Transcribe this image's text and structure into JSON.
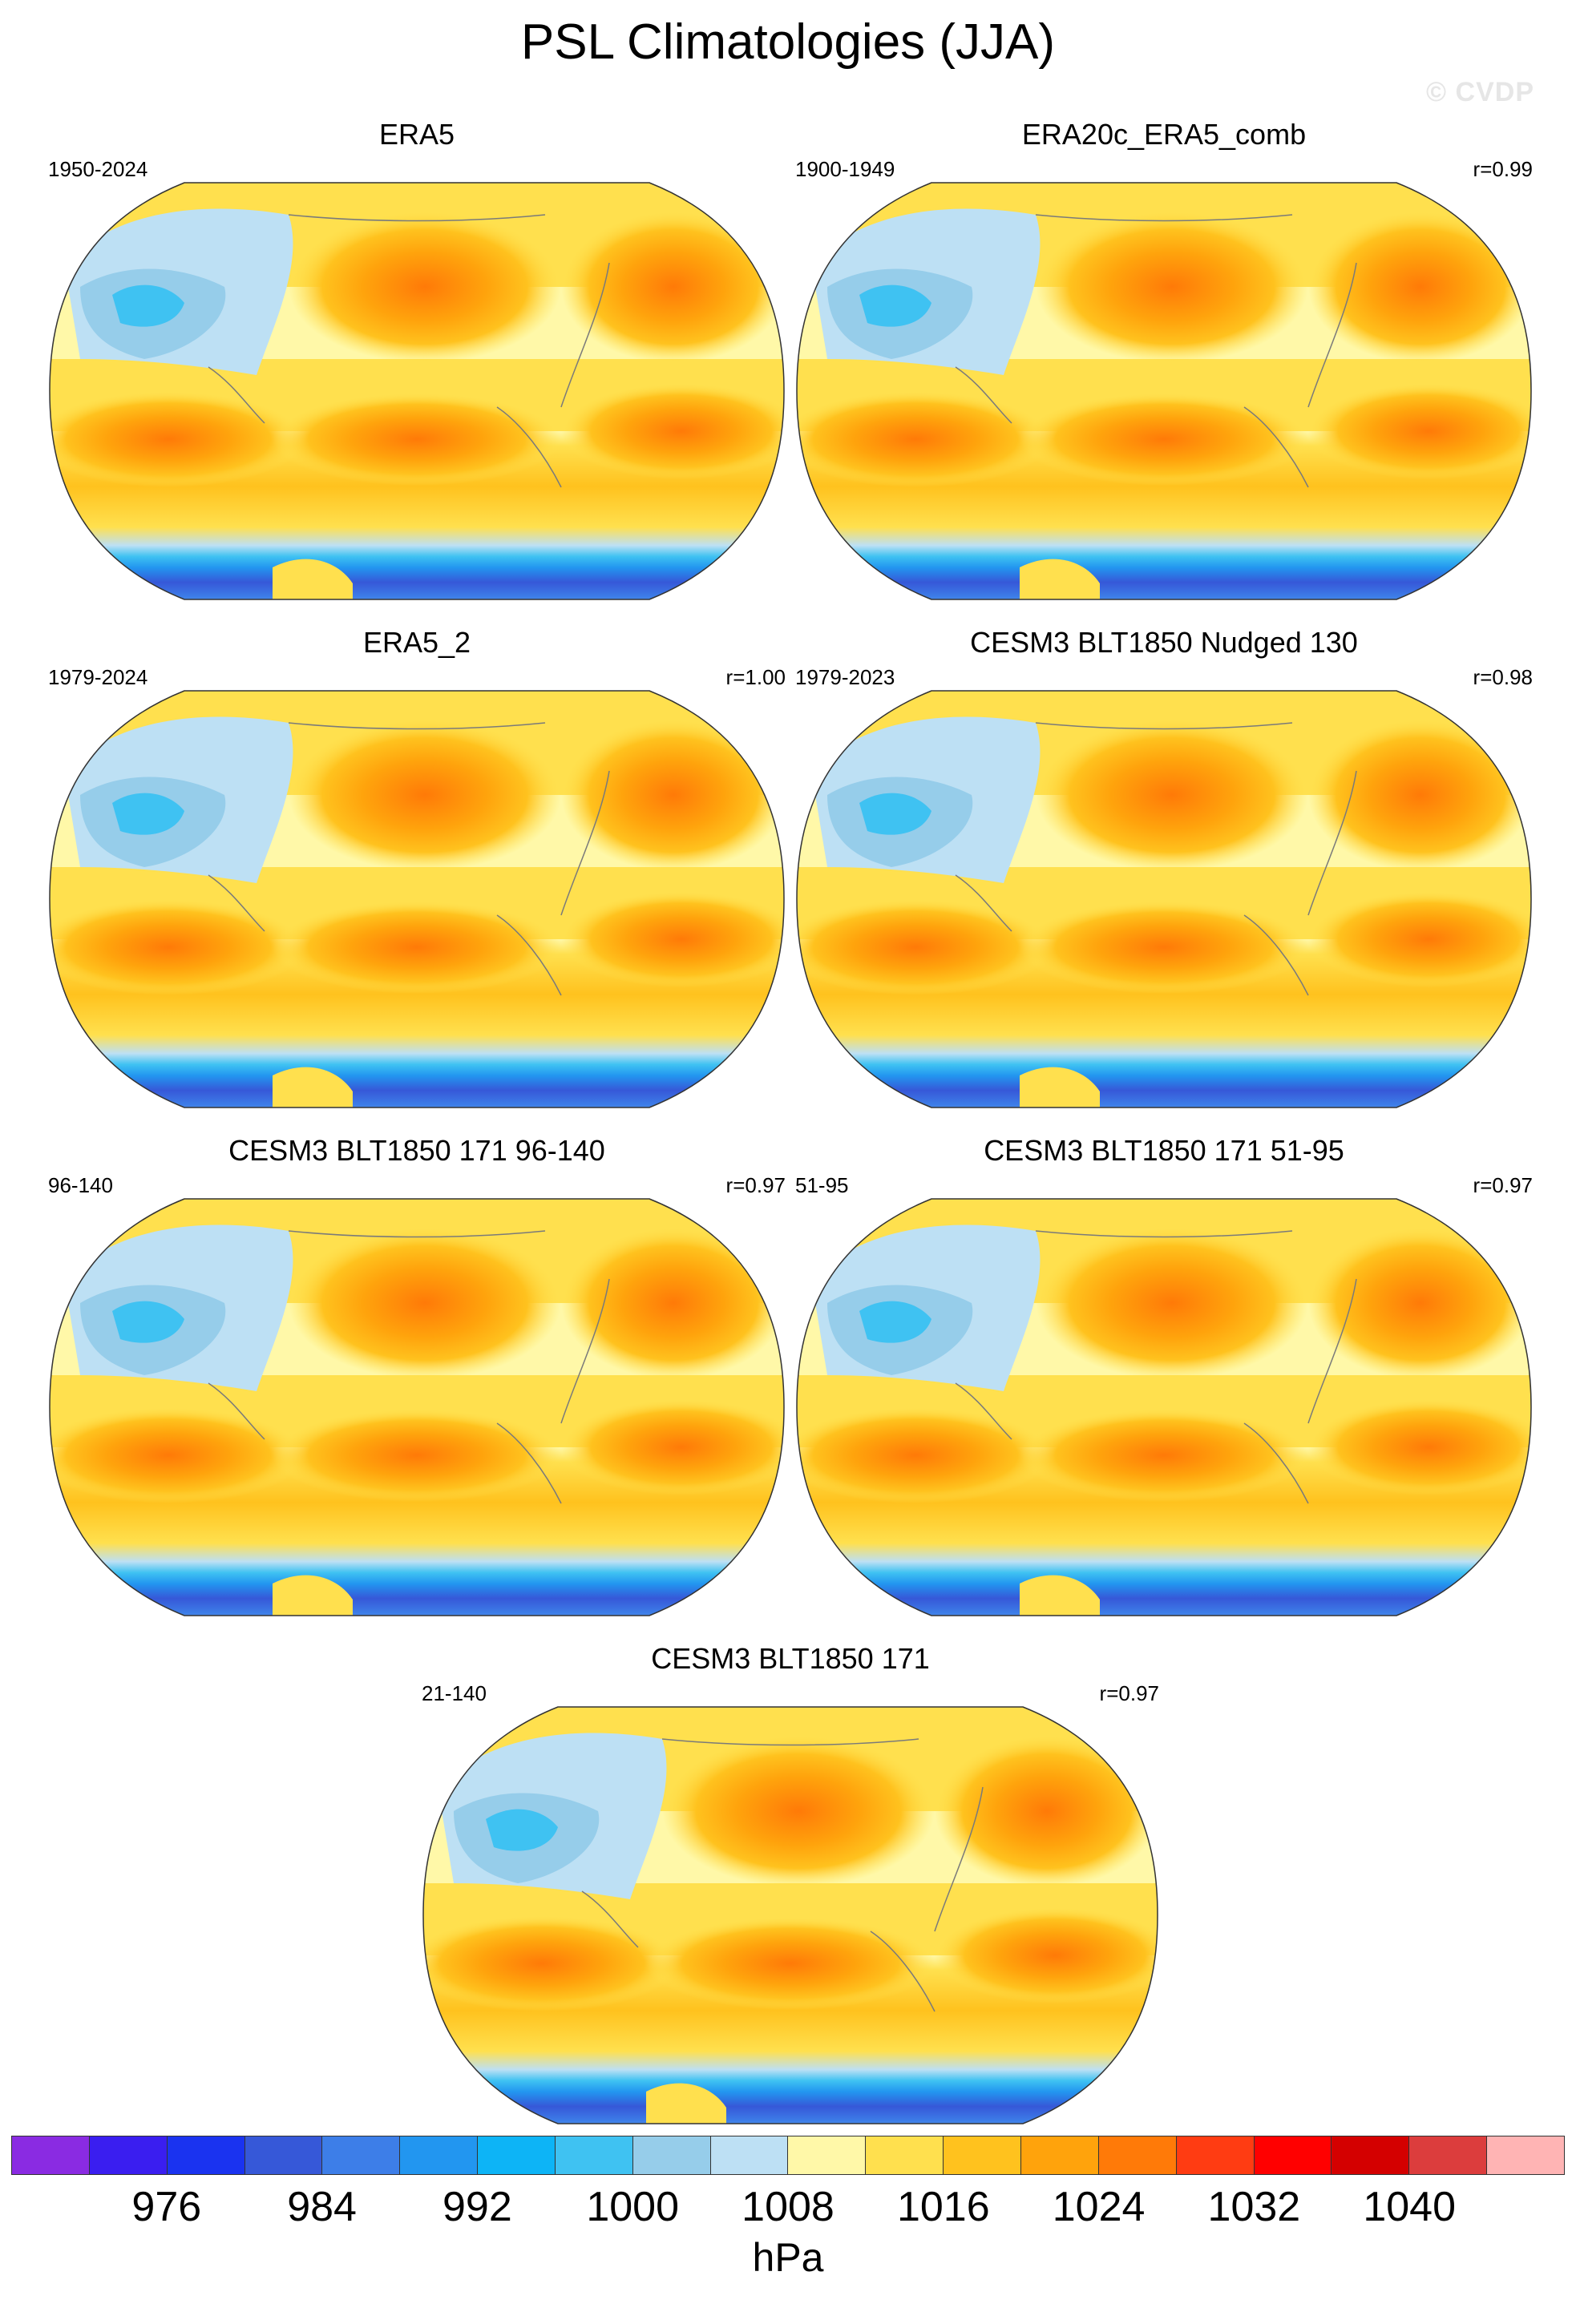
{
  "title": "PSL Climatologies (JJA)",
  "watermark": "© CVDP",
  "panels": [
    {
      "title": "ERA5",
      "period": "1950-2024",
      "corr": ""
    },
    {
      "title": "ERA20c_ERA5_comb",
      "period": "1900-1949",
      "corr": "r=0.99"
    },
    {
      "title": "ERA5_2",
      "period": "1979-2024",
      "corr": "r=1.00"
    },
    {
      "title": "CESM3 BLT1850 Nudged 130",
      "period": "1979-2023",
      "corr": "r=0.98"
    },
    {
      "title": "CESM3 BLT1850 171 96-140",
      "period": "96-140",
      "corr": "r=0.97"
    },
    {
      "title": "CESM3 BLT1850 171 51-95",
      "period": "51-95",
      "corr": "r=0.97"
    },
    {
      "title": "CESM3 BLT1850 171",
      "period": "21-140",
      "corr": "r=0.97"
    }
  ],
  "colorbar": {
    "units": "hPa",
    "tick_labels": [
      "976",
      "984",
      "992",
      "1000",
      "1008",
      "1016",
      "1024",
      "1032",
      "1040"
    ],
    "colors": [
      "#8a2be2",
      "#3a1ef0",
      "#1a33f0",
      "#3658d8",
      "#3d7ee8",
      "#2296f0",
      "#0db4f6",
      "#3fc2f2",
      "#96cdea",
      "#bde0f4",
      "#fff8a8",
      "#ffe04e",
      "#ffc21e",
      "#ffa30c",
      "#ff7a08",
      "#ff3c12",
      "#ff0000",
      "#d40000",
      "#dc3d3d",
      "#ffb4b4"
    ]
  }
}
